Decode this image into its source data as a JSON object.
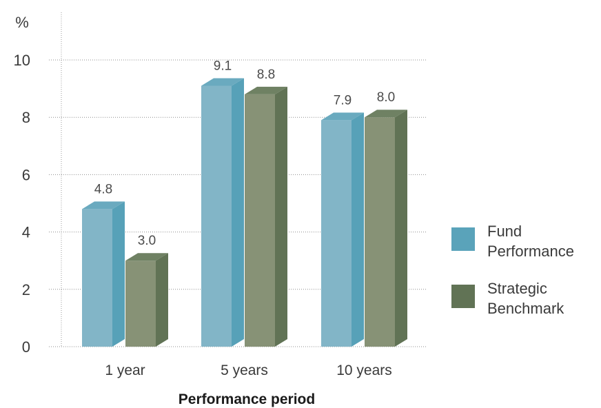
{
  "chart_data": {
    "type": "bar",
    "xlabel": "Performance period",
    "ylabel": "%",
    "ylim": [
      0,
      10
    ],
    "yticks": [
      "0",
      "2",
      "4",
      "6",
      "8",
      "10"
    ],
    "categories": [
      "1 year",
      "5 years",
      "10 years"
    ],
    "series": [
      {
        "name": "Fund Performance",
        "legend_lines": [
          "Fund",
          "Performance"
        ],
        "values": [
          4.8,
          9.1,
          7.9
        ],
        "labels": [
          "4.8",
          "9.1",
          "7.9"
        ],
        "color": "#5aa3ba",
        "front_color": "#82b5c7",
        "top_color": "#6aaabf",
        "side_color": "#57a1b8"
      },
      {
        "name": "Strategic Benchmark",
        "legend_lines": [
          "Strategic",
          "Benchmark"
        ],
        "values": [
          3.0,
          8.8,
          8.0
        ],
        "labels": [
          "3.0",
          "8.8",
          "8.0"
        ],
        "color": "#617355",
        "front_color": "#879276",
        "top_color": "#6f8163",
        "side_color": "#617355"
      }
    ],
    "grid": true,
    "legend_position": "right",
    "three_d": true
  }
}
